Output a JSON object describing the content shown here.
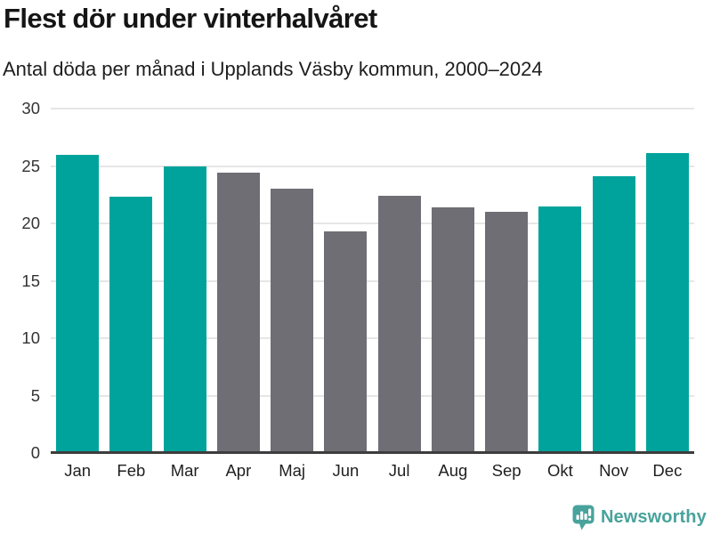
{
  "header": {
    "title": "Flest dör under vinterhalvåret",
    "subtitle": "Antal döda per månad i Upplands Väsby kommun, 2000–2024"
  },
  "chart_data": {
    "type": "bar",
    "title": "Flest dör under vinterhalvåret",
    "subtitle": "Antal döda per månad i Upplands Väsby kommun, 2000–2024",
    "categories": [
      "Jan",
      "Feb",
      "Mar",
      "Apr",
      "Maj",
      "Jun",
      "Jul",
      "Aug",
      "Sep",
      "Okt",
      "Nov",
      "Dec"
    ],
    "values": [
      26.0,
      22.3,
      25.0,
      24.4,
      23.0,
      19.3,
      22.4,
      21.4,
      21.0,
      21.5,
      24.1,
      26.1
    ],
    "bar_colors": [
      "teal",
      "teal",
      "teal",
      "gray",
      "gray",
      "gray",
      "gray",
      "gray",
      "gray",
      "teal",
      "teal",
      "teal"
    ],
    "colors": {
      "teal": "#00a39b",
      "gray": "#6e6e74",
      "grid": "#e6e6e6",
      "axis": "#3d3d3d"
    },
    "xlabel": "",
    "ylabel": "",
    "ylim": [
      0,
      30
    ],
    "yticks": [
      0,
      5,
      10,
      15,
      20,
      25,
      30
    ],
    "grid": true,
    "legend": false
  },
  "footer": {
    "brand": "Newsworthy",
    "brand_color": "#48a39c"
  }
}
